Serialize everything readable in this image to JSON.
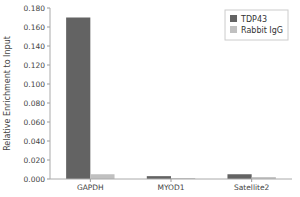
{
  "chart_data": {
    "type": "bar",
    "categories": [
      "GAPDH",
      "MYOD1",
      "Satellite2"
    ],
    "series": [
      {
        "name": "TDP43",
        "color": "#636363",
        "values": [
          0.17,
          0.003,
          0.005
        ]
      },
      {
        "name": "Rabbit IgG",
        "color": "#c0c0c0",
        "values": [
          0.005,
          0.001,
          0.002
        ]
      }
    ],
    "ylabel": "Relative Enrichment to Input",
    "ylim": [
      0,
      0.18
    ],
    "yticks": [
      {
        "value": 0.0,
        "label": "0.000"
      },
      {
        "value": 0.02,
        "label": "0.020"
      },
      {
        "value": 0.04,
        "label": "0.040"
      },
      {
        "value": 0.06,
        "label": "0.060"
      },
      {
        "value": 0.08,
        "label": "0.080"
      },
      {
        "value": 0.1,
        "label": "0.100"
      },
      {
        "value": 0.12,
        "label": "0.120"
      },
      {
        "value": 0.14,
        "label": "0.140"
      },
      {
        "value": 0.16,
        "label": "0.160"
      },
      {
        "value": 0.18,
        "label": "0.180"
      }
    ],
    "grid": false,
    "legend": "upper right"
  }
}
